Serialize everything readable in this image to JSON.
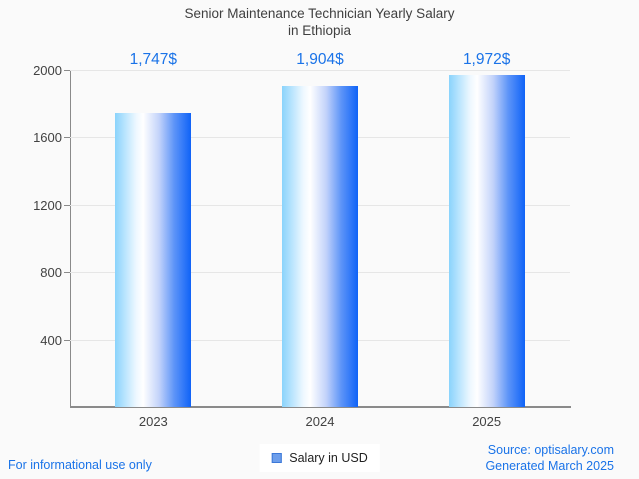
{
  "chart": {
    "title_line1": "Senior Maintenance Technician Yearly Salary",
    "title_line2": "in Ethiopia",
    "legend_label": "Salary in USD",
    "footer_left": "For informational use only",
    "source_line1": "Source: optisalary.com",
    "source_line2": "Generated March 2025"
  },
  "chart_data": {
    "type": "bar",
    "title": "Senior Maintenance Technician Yearly Salary in Ethiopia",
    "categories": [
      "2023",
      "2024",
      "2025"
    ],
    "series": [
      {
        "name": "Salary in USD",
        "values": [
          1747,
          1904,
          1972
        ]
      }
    ],
    "value_labels": [
      "1,747$",
      "1,904$",
      "1,972$"
    ],
    "xlabel": "",
    "ylabel": "",
    "ylim": [
      0,
      2000
    ],
    "yticks": [
      400,
      800,
      1200,
      1600,
      2000
    ],
    "grid": "horizontal",
    "legend_position": "bottom",
    "colors": {
      "background": "#fafafa",
      "accent_blue": "#1a73e8",
      "text_dark": "#3f3f3f",
      "tick_text": "#424242",
      "grid": "#e6e6e6",
      "axis": "#8a8a8a",
      "legend_fill": "#6d9eeb",
      "legend_border": "#3c78d8",
      "legend_text": "#1f1f1f",
      "bar_gradient_stops": [
        "#8ad3fc 0%",
        "#eef8ff 28%",
        "#ffffff 37%",
        "#c3d3fa 58%",
        "#5d94f8 78%",
        "#0f63f7 100%"
      ]
    }
  }
}
